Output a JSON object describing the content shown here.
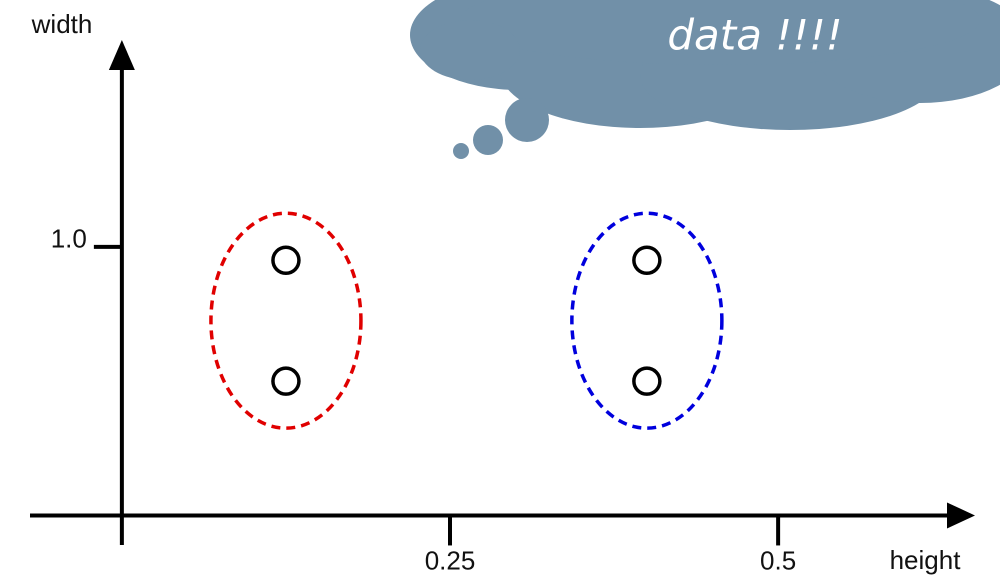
{
  "chart_data": {
    "type": "scatter",
    "x_label": "height",
    "y_label": "width",
    "annotation": "data !!!!",
    "xlim": [
      -0.07,
      0.65
    ],
    "ylim": [
      -0.11,
      1.77
    ],
    "xticks": [
      0.25,
      0.5
    ],
    "yticks": [
      {
        "value": 1,
        "label": "1.0"
      }
    ],
    "series": [
      {
        "color": "#e00000",
        "x": [
          0.125,
          0.125
        ],
        "values": [
          0.95,
          0.5
        ]
      },
      {
        "color": "#0000dd",
        "x": [
          0.4,
          0.4
        ],
        "values": [
          0.95,
          0.5
        ]
      }
    ]
  }
}
